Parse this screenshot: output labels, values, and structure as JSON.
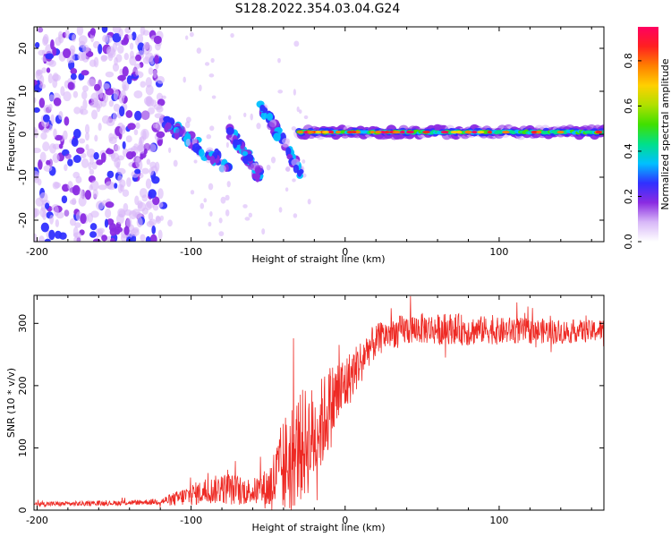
{
  "figure_title": "S128.2022.354.03.04.G24",
  "chart_data": [
    {
      "type": "heatmap",
      "xlabel": "Height of straight line (km)",
      "ylabel": "Frequency (Hz)",
      "xlim": [
        -202,
        168
      ],
      "ylim": [
        -25,
        25
      ],
      "xticks": [
        -200,
        -100,
        0,
        100
      ],
      "yticks": [
        -20,
        -10,
        0,
        10,
        20
      ],
      "colorbar": {
        "label": "Normalized spectral amplitude",
        "range": [
          0,
          0.95
        ],
        "ticks": [
          0.0,
          0.2,
          0.4,
          0.6,
          0.8
        ],
        "colormap": [
          "#ffffff",
          "#d8b8f8",
          "#8a2be2",
          "#3030ff",
          "#00c0ff",
          "#00e08a",
          "#40e000",
          "#b0e000",
          "#ffd000",
          "#ff8000",
          "#ff2020",
          "#ff0060"
        ]
      },
      "features": {
        "noise_region_x": [
          -202,
          -118
        ],
        "descending_tracks": [
          {
            "x": [
              -118,
              -75
            ],
            "y": [
              3,
              -8
            ]
          },
          {
            "x": [
              -75,
              -55
            ],
            "y": [
              1,
              -10
            ]
          },
          {
            "x": [
              -55,
              -28
            ],
            "y": [
              7,
              -9
            ]
          }
        ],
        "steady_line": {
          "x": [
            -30,
            168
          ],
          "y": 0.5
        }
      }
    },
    {
      "type": "line",
      "xlabel": "Height of straight line (km)",
      "ylabel": "SNR (10 * v/v)",
      "xlim": [
        -202,
        168
      ],
      "ylim": [
        0,
        345
      ],
      "xticks": [
        -200,
        -100,
        0,
        100
      ],
      "yticks": [
        0,
        100,
        200,
        300
      ],
      "line_color": "#ee2a24",
      "series": [
        {
          "x": [
            -202,
            -180,
            -160,
            -140,
            -120,
            -110,
            -100,
            -90,
            -80,
            -70,
            -60,
            -50,
            -45,
            -40,
            -35,
            -30,
            -25,
            -20,
            -15,
            -10,
            -5,
            0,
            5,
            10,
            15,
            20,
            25,
            30,
            40,
            50,
            60,
            70,
            80,
            90,
            100,
            110,
            120,
            130,
            140,
            150,
            160,
            168
          ],
          "y": [
            10,
            10,
            11,
            12,
            14,
            18,
            25,
            30,
            35,
            32,
            30,
            35,
            50,
            70,
            85,
            100,
            110,
            120,
            140,
            165,
            185,
            200,
            220,
            240,
            260,
            270,
            280,
            285,
            290,
            292,
            290,
            292,
            288,
            290,
            287,
            289,
            287,
            288,
            286,
            288,
            287,
            290
          ],
          "noise_amplitude": [
            4,
            4,
            4,
            4,
            5,
            12,
            18,
            20,
            25,
            25,
            20,
            35,
            60,
            80,
            90,
            90,
            90,
            80,
            75,
            70,
            60,
            50,
            40,
            35,
            30,
            28,
            25,
            25,
            25,
            25,
            25,
            25,
            25,
            22,
            22,
            22,
            20,
            20,
            20,
            18,
            18,
            18
          ]
        }
      ]
    }
  ]
}
